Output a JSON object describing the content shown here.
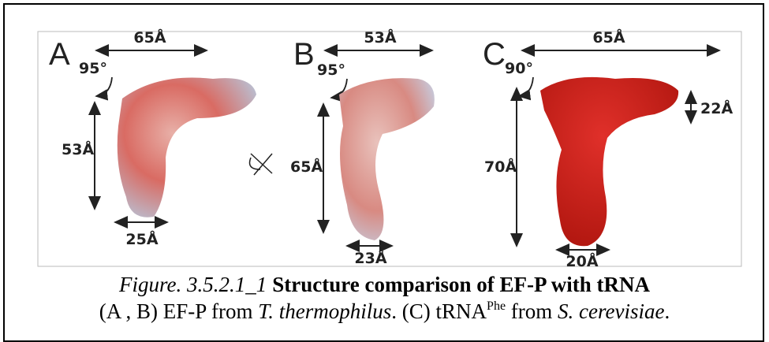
{
  "figure": {
    "panels": [
      {
        "label": "A",
        "width": "65Å",
        "angle": "95°",
        "height": "53Å",
        "base": "25Å"
      },
      {
        "label": "B",
        "width": "53Å",
        "angle": "95°",
        "height": "65Å",
        "base": "23Å"
      },
      {
        "label": "C",
        "width": "65Å",
        "angle": "90°",
        "height": "70Å",
        "side": "22Å",
        "base": "20Å"
      }
    ]
  },
  "caption": {
    "number": "Figure. 3.5.2.1_1",
    "title": "Structure comparison of EF-P with tRNA",
    "line2": [
      "(A , B) EF-P from ",
      "T. thermophilus",
      ". (C) tRNA",
      "Phe",
      " from ",
      "S. cerevisiae",
      "."
    ]
  }
}
